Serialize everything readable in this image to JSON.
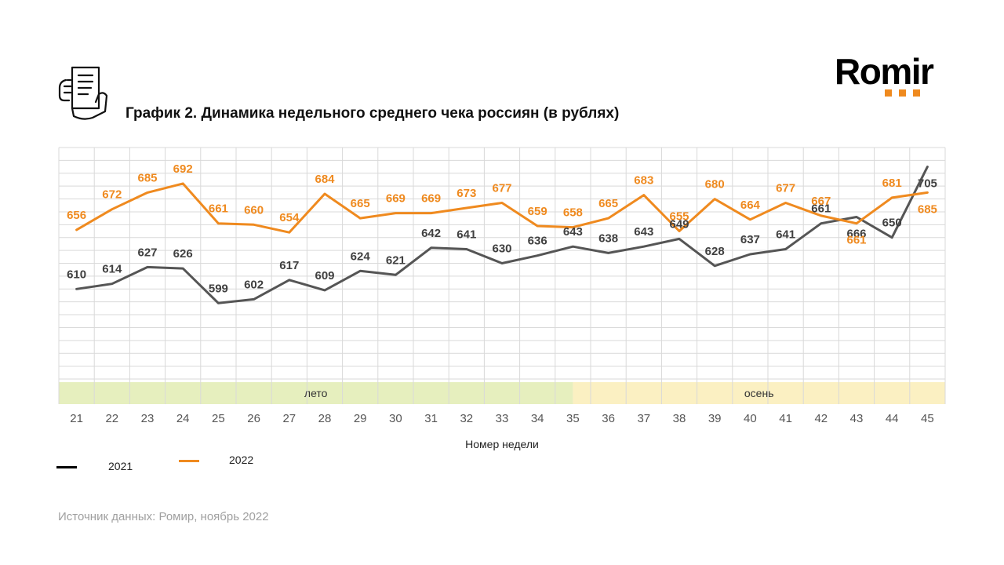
{
  "title": "График 2. Динамика недельного среднего чека россиян (в рублях)",
  "logo": {
    "text": "Romir",
    "dots_color": "#ef8a1f",
    "icon": "receipt-hand-icon"
  },
  "source": "Источник данных: Ромир, ноябрь 2022",
  "legend": [
    {
      "label": "2021",
      "color": "#000000"
    },
    {
      "label": "2022",
      "color": "#ef8a1f"
    }
  ],
  "chart_data": {
    "type": "line",
    "xlabel": "Номер недели",
    "ylabel": "",
    "categories": [
      "21",
      "22",
      "23",
      "24",
      "25",
      "26",
      "27",
      "28",
      "29",
      "30",
      "31",
      "32",
      "33",
      "34",
      "35",
      "36",
      "37",
      "38",
      "39",
      "40",
      "41",
      "42",
      "43",
      "44",
      "45"
    ],
    "ylim": [
      540,
      720
    ],
    "grid": true,
    "legend_position": "bottom-left",
    "series": [
      {
        "name": "2021",
        "color": "#555555",
        "values": [
          610,
          614,
          627,
          626,
          599,
          602,
          617,
          609,
          624,
          621,
          642,
          641,
          630,
          636,
          643,
          638,
          643,
          649,
          628,
          637,
          641,
          661,
          666,
          650,
          705
        ],
        "labels": [
          "610",
          "614",
          "627",
          "626",
          "599",
          "602",
          "617",
          "609",
          "624",
          "621",
          "642",
          "641",
          "630",
          "636",
          "643",
          "638",
          "643",
          "649",
          "628",
          "637",
          "641",
          "661",
          "666",
          "650",
          "705"
        ]
      },
      {
        "name": "2022",
        "color": "#ef8a1f",
        "values": [
          656,
          672,
          685,
          692,
          661,
          660,
          654,
          684,
          665,
          669,
          669,
          673,
          677,
          659,
          658,
          665,
          683,
          655,
          680,
          664,
          677,
          667,
          661,
          681,
          685
        ],
        "labels": [
          "656",
          "672",
          "685",
          "692",
          "661",
          "660",
          "654",
          "684",
          "665",
          "669",
          "669",
          "673",
          "677",
          "659",
          "658",
          "665",
          "683",
          "655",
          "680",
          "664",
          "677",
          "667",
          "661",
          "681",
          "685"
        ]
      }
    ],
    "seasons": [
      {
        "label": "лето",
        "from": "21",
        "to": "35",
        "color": "#e6efbe"
      },
      {
        "label": "осень",
        "from": "35",
        "to": "45",
        "color": "#fbf0c2"
      }
    ]
  }
}
